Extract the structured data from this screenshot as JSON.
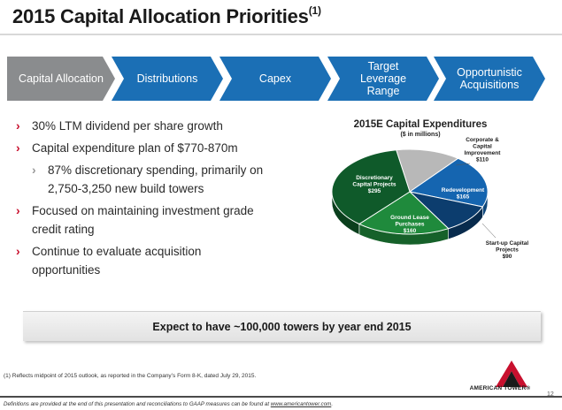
{
  "title": {
    "text": "2015 Capital Allocation Priorities",
    "sup": "(1)"
  },
  "process": [
    {
      "line1": "Capital Allocation",
      "line2": "",
      "line3": "",
      "color": "#8a8c8e"
    },
    {
      "line1": "Distributions",
      "line2": "",
      "line3": "",
      "color": "#1b6fb5"
    },
    {
      "line1": "Capex",
      "line2": "",
      "line3": "",
      "color": "#1b6fb5"
    },
    {
      "line1": "Target",
      "line2": "Leverage",
      "line3": "Range",
      "color": "#1b6fb5"
    },
    {
      "line1": "Opportunistic",
      "line2": "Acquisitions",
      "line3": "",
      "color": "#1b6fb5"
    }
  ],
  "bullets": [
    {
      "text": "30% LTM dividend per share growth",
      "level": 1
    },
    {
      "text": "Capital expenditure plan of $770-870m",
      "level": 1
    },
    {
      "text": "87% discretionary spending, primarily on",
      "text2": "2,750-3,250 new build towers",
      "level": 2
    },
    {
      "text": "Focused on maintaining investment grade",
      "text2": "credit rating",
      "level": 1
    },
    {
      "text": "Continue to evaluate acquisition",
      "text2": "opportunities",
      "level": 1
    }
  ],
  "bullet_mark": "›",
  "chart_data": {
    "type": "pie",
    "title": "2015E Capital Expenditures",
    "subtitle": "($ in millions)",
    "slices": [
      {
        "label": "Corporate & Capital Improvement",
        "label_lines": [
          "Corporate &",
          "Capital",
          "Improvement"
        ],
        "value_label": "$110",
        "value": 110,
        "color": "#b8b8b8"
      },
      {
        "label": "Redevelopment",
        "label_lines": [
          "Redevelopment"
        ],
        "value_label": "$165",
        "value": 165,
        "color": "#1565b0"
      },
      {
        "label": "Start-up Capital Projects",
        "label_lines": [
          "Start-up Capital",
          "Projects"
        ],
        "value_label": "$90",
        "value": 90,
        "color": "#0c3d6e"
      },
      {
        "label": "Ground Lease Purchases",
        "label_lines": [
          "Ground Lease",
          "Purchases"
        ],
        "value_label": "$160",
        "value": 160,
        "color": "#1f8a3c"
      },
      {
        "label": "Discretionary Capital Projects",
        "label_lines": [
          "Discretionary",
          "Capital Projects"
        ],
        "value_label": "$295",
        "value": 295,
        "color": "#0f5a2a"
      }
    ]
  },
  "callout": "Expect to have ~100,000 towers by year end 2015",
  "footnote": "(1)   Reflects midpoint of 2015 outlook, as reported in the Company’s Form 8-K, dated July 29, 2015.",
  "logo_text": "AMERICAN TOWER",
  "logo_mark": "®",
  "defs_text": "Definitions are provided at the end of this presentation and reconciliations to GAAP measures can be found at ",
  "defs_link": "www.americantower.com",
  "defs_end": ".",
  "page_number": "12",
  "colors": {
    "accent_red": "#c8102e",
    "blue": "#1b6fb5",
    "gray": "#8a8c8e"
  }
}
